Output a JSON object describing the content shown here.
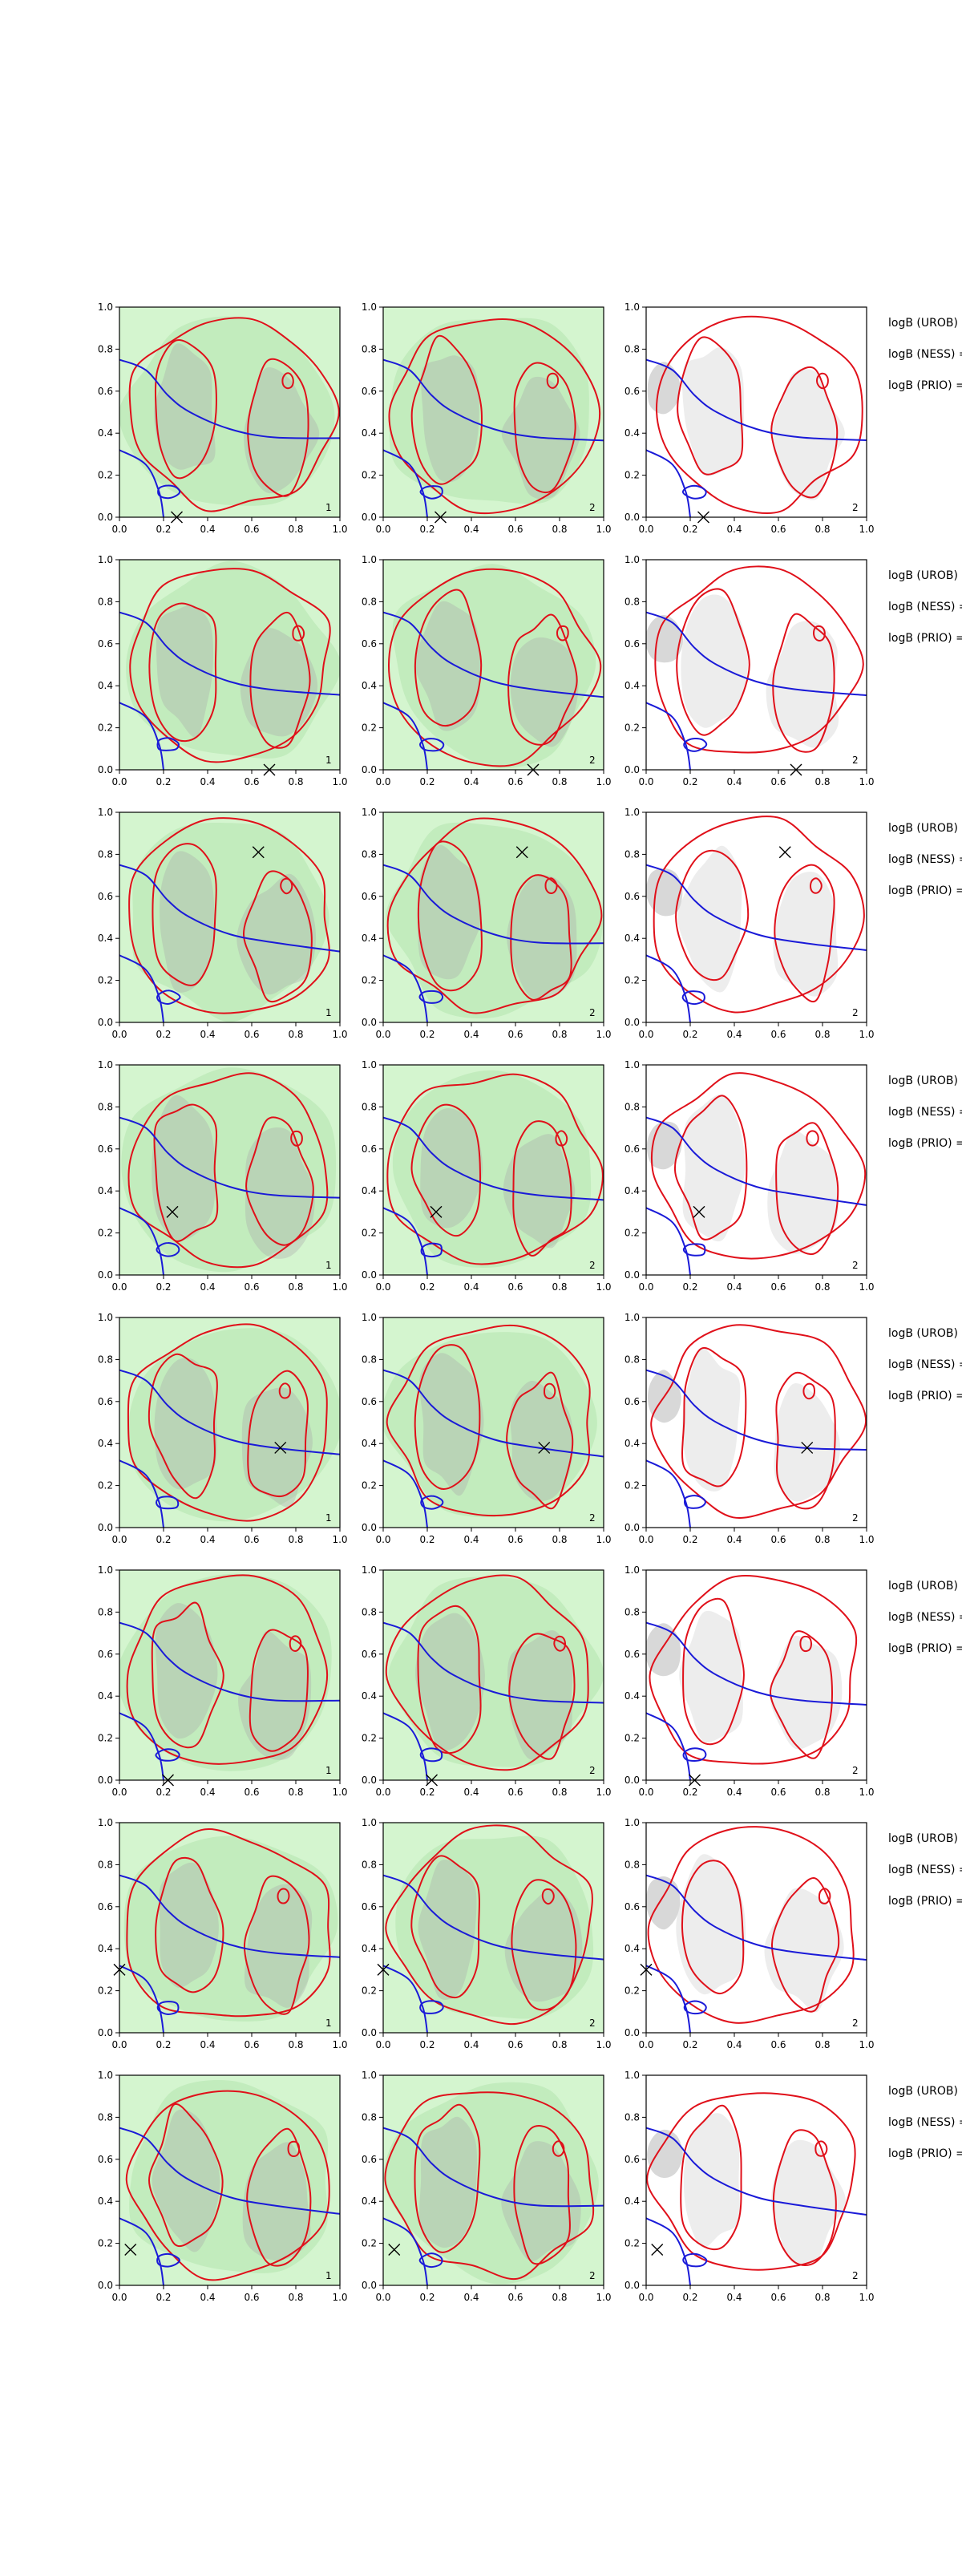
{
  "figure": {
    "colors": {
      "red_contour": "#e0101a",
      "blue_contour": "#1a1ad8",
      "green_light": "#d4f5cf",
      "green_mid": "#c2ecbd",
      "grey_overlay": "#a8a8a8",
      "grey_light": "#ededed",
      "frame": "#000000"
    }
  },
  "chart_data": {
    "type": "contour",
    "xlim": [
      0,
      1
    ],
    "ylim": [
      0,
      1
    ],
    "x_ticks": [
      "0.0",
      "0.2",
      "0.4",
      "0.6",
      "0.8",
      "1.0"
    ],
    "y_ticks": [
      "0.0",
      "0.2",
      "0.4",
      "0.6",
      "0.8",
      "1.0"
    ],
    "grid": false,
    "side_labels": [
      "logB (UROB) =",
      "logB (NESS) =",
      "logB (PRIO) ="
    ],
    "rows": [
      {
        "marker": [
          0.26,
          0.0
        ],
        "indices": [
          "1",
          "2",
          "2"
        ]
      },
      {
        "marker": [
          0.68,
          0.0
        ],
        "indices": [
          "1",
          "2",
          "2"
        ]
      },
      {
        "marker": [
          0.63,
          0.81
        ],
        "indices": [
          "1",
          "2",
          "2"
        ]
      },
      {
        "marker": [
          0.24,
          0.3
        ],
        "indices": [
          "1",
          "2",
          "2"
        ]
      },
      {
        "marker": [
          0.73,
          0.38
        ],
        "indices": [
          "1",
          "2",
          "2"
        ]
      },
      {
        "marker": [
          0.22,
          0.0
        ],
        "indices": [
          "1",
          "2",
          "2"
        ]
      },
      {
        "marker": [
          0.0,
          0.3
        ],
        "indices": [
          "1",
          "2",
          "2"
        ]
      },
      {
        "marker": [
          0.05,
          0.17
        ],
        "indices": [
          "1",
          "2",
          "2"
        ]
      }
    ]
  }
}
